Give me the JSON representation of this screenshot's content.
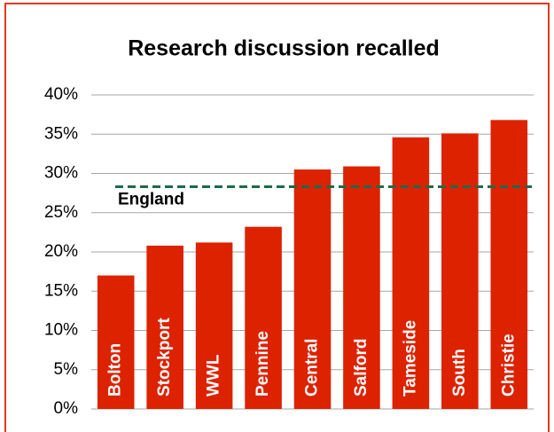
{
  "chart_data": {
    "type": "bar",
    "title": "Research discussion recalled",
    "categories": [
      "Bolton",
      "Stockport",
      "WWL",
      "Pennine",
      "Central",
      "Salford",
      "Tameside",
      "South",
      "Christie"
    ],
    "values": [
      17,
      20.8,
      21.2,
      23.2,
      30.5,
      30.9,
      34.6,
      35.1,
      36.8
    ],
    "color": "#dd2200",
    "ylim": [
      0,
      40
    ],
    "yticks": [
      {
        "value": 0,
        "label": "0%"
      },
      {
        "value": 5,
        "label": "5%"
      },
      {
        "value": 10,
        "label": "10%"
      },
      {
        "value": 15,
        "label": "15%"
      },
      {
        "value": 20,
        "label": "20%"
      },
      {
        "value": 25,
        "label": "25%"
      },
      {
        "value": 30,
        "label": "30%"
      },
      {
        "value": 35,
        "label": "35%"
      },
      {
        "value": 40,
        "label": "40%"
      }
    ],
    "grid": true,
    "reference": {
      "name": "England",
      "value": 28.3,
      "color": "#1a6b4a"
    }
  }
}
